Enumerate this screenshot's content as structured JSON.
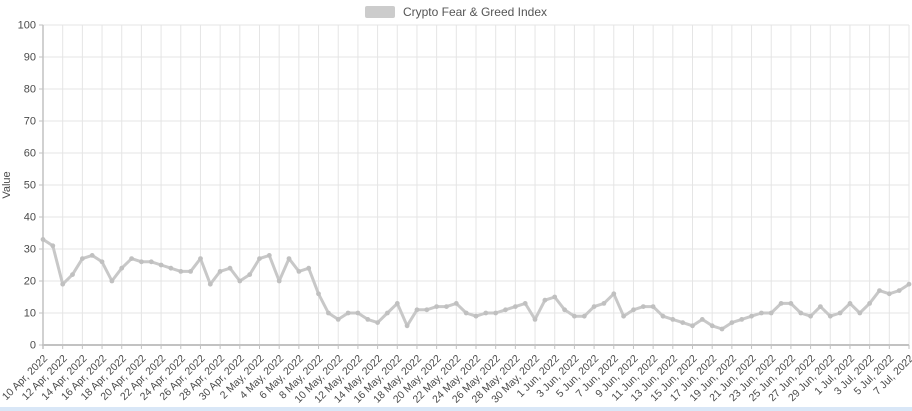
{
  "chart": {
    "legend": {
      "label": "Crypto Fear & Greed Index",
      "swatch_color": "#cccccc"
    },
    "y_axis": {
      "title": "Value",
      "ticks": [
        "0",
        "10",
        "20",
        "30",
        "40",
        "50",
        "60",
        "70",
        "80",
        "90",
        "100"
      ]
    },
    "x_axis": {
      "tick_labels": [
        "10 Apr, 2022",
        "12 Apr, 2022",
        "14 Apr, 2022",
        "16 Apr, 2022",
        "18 Apr, 2022",
        "20 Apr, 2022",
        "22 Apr, 2022",
        "24 Apr, 2022",
        "26 Apr, 2022",
        "28 Apr, 2022",
        "30 Apr, 2022",
        "2 May, 2022",
        "4 May, 2022",
        "6 May, 2022",
        "8 May, 2022",
        "10 May, 2022",
        "12 May, 2022",
        "14 May, 2022",
        "16 May, 2022",
        "18 May, 2022",
        "20 May, 2022",
        "22 May, 2022",
        "24 May, 2022",
        "26 May, 2022",
        "28 May, 2022",
        "30 May, 2022",
        "1 Jun, 2022",
        "3 Jun, 2022",
        "5 Jun, 2022",
        "7 Jun, 2022",
        "9 Jun, 2022",
        "11 Jun, 2022",
        "13 Jun, 2022",
        "15 Jun, 2022",
        "17 Jun, 2022",
        "19 Jun, 2022",
        "21 Jun, 2022",
        "23 Jun, 2022",
        "25 Jun, 2022",
        "27 Jun, 2022",
        "29 Jun, 2022",
        "1 Jul, 2022",
        "3 Jul, 2022",
        "5 Jul, 2022",
        "7 Jul, 2022"
      ]
    }
  },
  "chart_data": {
    "type": "line",
    "title": "Crypto Fear & Greed Index",
    "xlabel": "",
    "ylabel": "Value",
    "ylim": [
      0,
      100
    ],
    "y_tick_step": 10,
    "grid": true,
    "legend_position": "top",
    "x_tick_every": 2,
    "series": [
      {
        "name": "Crypto Fear & Greed Index",
        "color": "#c8c8c8",
        "marker": "circle",
        "x": [
          "10 Apr, 2022",
          "11 Apr, 2022",
          "12 Apr, 2022",
          "13 Apr, 2022",
          "14 Apr, 2022",
          "15 Apr, 2022",
          "16 Apr, 2022",
          "17 Apr, 2022",
          "18 Apr, 2022",
          "19 Apr, 2022",
          "20 Apr, 2022",
          "21 Apr, 2022",
          "22 Apr, 2022",
          "23 Apr, 2022",
          "24 Apr, 2022",
          "25 Apr, 2022",
          "26 Apr, 2022",
          "27 Apr, 2022",
          "28 Apr, 2022",
          "29 Apr, 2022",
          "30 Apr, 2022",
          "1 May, 2022",
          "2 May, 2022",
          "3 May, 2022",
          "4 May, 2022",
          "5 May, 2022",
          "6 May, 2022",
          "7 May, 2022",
          "8 May, 2022",
          "9 May, 2022",
          "10 May, 2022",
          "11 May, 2022",
          "12 May, 2022",
          "13 May, 2022",
          "14 May, 2022",
          "15 May, 2022",
          "16 May, 2022",
          "17 May, 2022",
          "18 May, 2022",
          "19 May, 2022",
          "20 May, 2022",
          "21 May, 2022",
          "22 May, 2022",
          "23 May, 2022",
          "24 May, 2022",
          "25 May, 2022",
          "26 May, 2022",
          "27 May, 2022",
          "28 May, 2022",
          "29 May, 2022",
          "30 May, 2022",
          "31 May, 2022",
          "1 Jun, 2022",
          "2 Jun, 2022",
          "3 Jun, 2022",
          "4 Jun, 2022",
          "5 Jun, 2022",
          "6 Jun, 2022",
          "7 Jun, 2022",
          "8 Jun, 2022",
          "9 Jun, 2022",
          "10 Jun, 2022",
          "11 Jun, 2022",
          "12 Jun, 2022",
          "13 Jun, 2022",
          "14 Jun, 2022",
          "15 Jun, 2022",
          "16 Jun, 2022",
          "17 Jun, 2022",
          "18 Jun, 2022",
          "19 Jun, 2022",
          "20 Jun, 2022",
          "21 Jun, 2022",
          "22 Jun, 2022",
          "23 Jun, 2022",
          "24 Jun, 2022",
          "25 Jun, 2022",
          "26 Jun, 2022",
          "27 Jun, 2022",
          "28 Jun, 2022",
          "29 Jun, 2022",
          "30 Jun, 2022",
          "1 Jul, 2022",
          "2 Jul, 2022",
          "3 Jul, 2022",
          "4 Jul, 2022",
          "5 Jul, 2022",
          "6 Jul, 2022",
          "7 Jul, 2022"
        ],
        "values": [
          33,
          31,
          19,
          22,
          27,
          28,
          26,
          20,
          24,
          27,
          26,
          26,
          25,
          24,
          23,
          23,
          27,
          19,
          23,
          24,
          20,
          22,
          27,
          28,
          20,
          27,
          23,
          24,
          16,
          10,
          8,
          10,
          10,
          8,
          7,
          10,
          13,
          6,
          11,
          11,
          12,
          12,
          13,
          10,
          9,
          10,
          10,
          11,
          12,
          13,
          8,
          14,
          15,
          11,
          9,
          9,
          12,
          13,
          16,
          9,
          11,
          12,
          12,
          9,
          8,
          7,
          6,
          8,
          6,
          5,
          7,
          8,
          9,
          10,
          10,
          13,
          13,
          10,
          9,
          12,
          9,
          10,
          13,
          10,
          13,
          17,
          16,
          17,
          19
        ]
      }
    ]
  },
  "colors": {
    "background": "#ffffff",
    "grid": "#e5e5e5",
    "axis": "#c2c2c2",
    "tick_text": "#4a4a4a",
    "bottom_strip": "#d9e7f7"
  }
}
